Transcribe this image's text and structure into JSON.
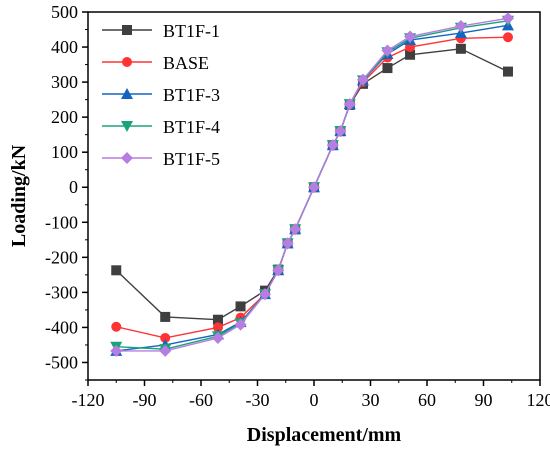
{
  "chart_data": {
    "type": "line",
    "xlabel": "Displacement/mm",
    "ylabel": "Loading/kN",
    "xlim": [
      -120,
      120
    ],
    "ylim": [
      -550,
      500
    ],
    "x_ticks": [
      -120,
      -90,
      -60,
      -30,
      0,
      30,
      60,
      90,
      120
    ],
    "y_ticks": [
      -500,
      -400,
      -300,
      -200,
      -100,
      0,
      100,
      200,
      300,
      400,
      500
    ],
    "legend_position": "top-left",
    "grid": false,
    "series": [
      {
        "name": "BT1F-1",
        "color": "#3f3f3f",
        "marker": "square",
        "x": [
          -105,
          -79,
          -51,
          -39,
          -26,
          -19,
          -14,
          -10,
          0,
          10,
          14,
          19,
          26,
          39,
          51,
          78,
          103
        ],
        "y": [
          -237,
          -370,
          -378,
          -340,
          -295,
          -235,
          -160,
          -120,
          0,
          120,
          160,
          235,
          295,
          340,
          378,
          395,
          330
        ]
      },
      {
        "name": "BASE",
        "color": "#ff3333",
        "marker": "circle",
        "x": [
          -105,
          -79,
          -51,
          -39,
          -26,
          -19,
          -14,
          -10,
          0,
          10,
          14,
          19,
          26,
          39,
          51,
          78,
          103
        ],
        "y": [
          -398,
          -430,
          -400,
          -372,
          -305,
          -237,
          -160,
          -120,
          0,
          120,
          160,
          237,
          300,
          370,
          400,
          425,
          428
        ]
      },
      {
        "name": "BT1F-3",
        "color": "#1565c0",
        "marker": "triangle-up",
        "x": [
          -105,
          -79,
          -51,
          -39,
          -26,
          -19,
          -14,
          -10,
          0,
          10,
          14,
          19,
          26,
          39,
          51,
          78,
          103
        ],
        "y": [
          -467,
          -450,
          -420,
          -385,
          -305,
          -237,
          -160,
          -120,
          0,
          120,
          160,
          237,
          305,
          380,
          420,
          440,
          462
        ]
      },
      {
        "name": "BT1F-4",
        "color": "#1aa37a",
        "marker": "triangle-down",
        "x": [
          -105,
          -79,
          -51,
          -39,
          -26,
          -19,
          -14,
          -10,
          0,
          10,
          14,
          19,
          26,
          39,
          51,
          78,
          103
        ],
        "y": [
          -455,
          -462,
          -425,
          -388,
          -305,
          -237,
          -160,
          -120,
          0,
          120,
          160,
          237,
          305,
          385,
          425,
          455,
          475
        ]
      },
      {
        "name": "BT1F-5",
        "color": "#b77de0",
        "marker": "diamond",
        "x": [
          -105,
          -79,
          -51,
          -39,
          -26,
          -19,
          -14,
          -10,
          0,
          10,
          14,
          19,
          26,
          39,
          51,
          78,
          103
        ],
        "y": [
          -467,
          -467,
          -430,
          -392,
          -305,
          -237,
          -160,
          -120,
          0,
          120,
          160,
          237,
          307,
          390,
          430,
          460,
          482
        ]
      }
    ]
  }
}
